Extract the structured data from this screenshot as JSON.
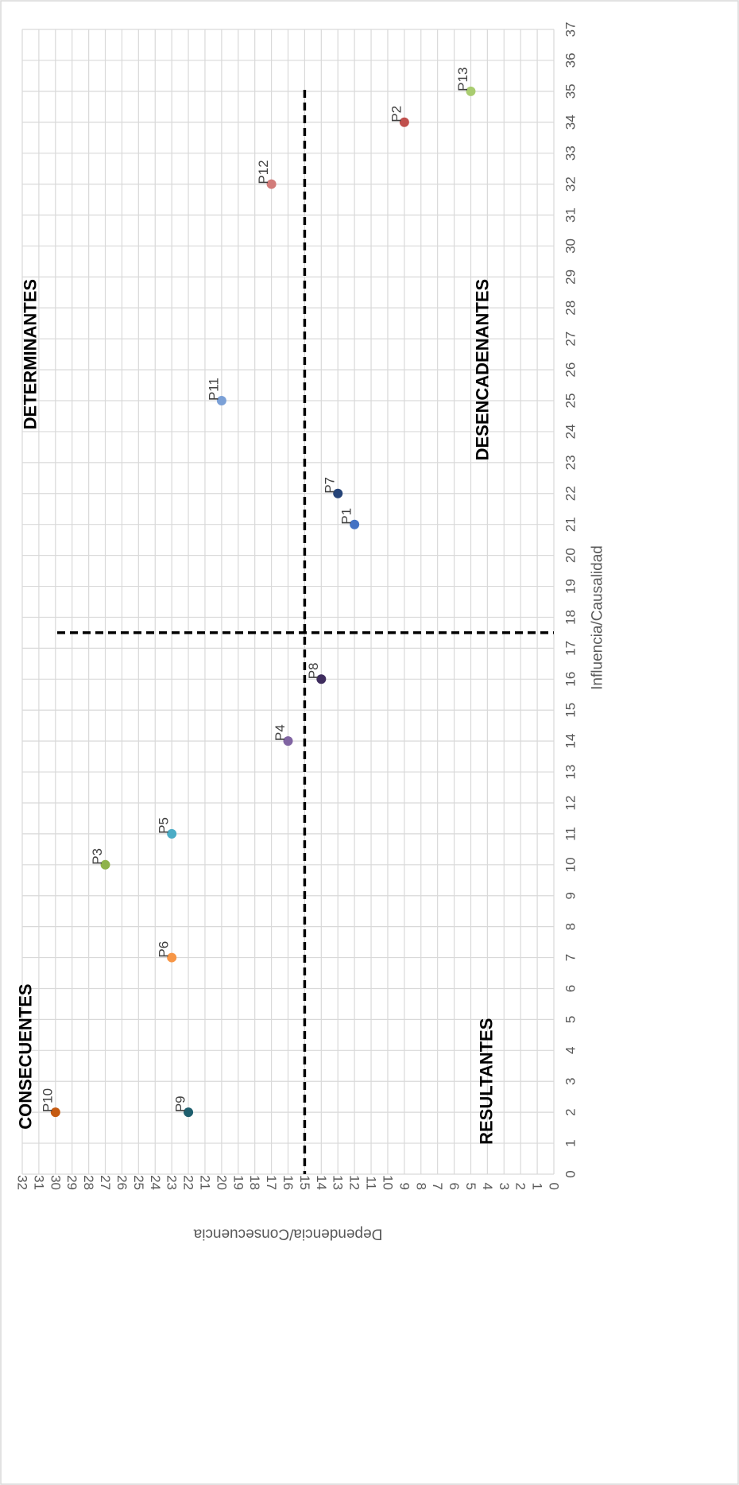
{
  "chart_data": {
    "type": "scatter",
    "xlabel": "Influencia/Causalidad",
    "ylabel": "Dependencia/Consecuencia",
    "xlim": [
      0,
      37
    ],
    "ylim": [
      0,
      32
    ],
    "x_ticks": [
      "0",
      "1",
      "2",
      "3",
      "4",
      "5",
      "6",
      "7",
      "8",
      "9",
      "10",
      "11",
      "12",
      "13",
      "14",
      "15",
      "16",
      "17",
      "18",
      "19",
      "20",
      "21",
      "22",
      "23",
      "24",
      "25",
      "26",
      "27",
      "28",
      "29",
      "30",
      "31",
      "32",
      "33",
      "34",
      "35",
      "36",
      "37"
    ],
    "y_ticks": [
      "0",
      "1",
      "2",
      "3",
      "4",
      "5",
      "6",
      "7",
      "8",
      "9",
      "10",
      "11",
      "12",
      "13",
      "14",
      "15",
      "16",
      "17",
      "18",
      "19",
      "20",
      "21",
      "22",
      "23",
      "24",
      "25",
      "26",
      "27",
      "28",
      "29",
      "30",
      "31",
      "32"
    ],
    "grid": true,
    "orientation": "rotated-90-clockwise",
    "points": [
      {
        "label": "P1",
        "x": 21,
        "y": 12,
        "color": "#4472c4"
      },
      {
        "label": "P2",
        "x": 34,
        "y": 9,
        "color": "#c0504d"
      },
      {
        "label": "P3",
        "x": 10,
        "y": 27,
        "color": "#8fb34a"
      },
      {
        "label": "P4",
        "x": 14,
        "y": 16,
        "color": "#8064a2"
      },
      {
        "label": "P5",
        "x": 11,
        "y": 23,
        "color": "#4bacc6"
      },
      {
        "label": "P6",
        "x": 7,
        "y": 23,
        "color": "#f79646"
      },
      {
        "label": "P7",
        "x": 22,
        "y": 13,
        "color": "#264478"
      },
      {
        "label": "P8",
        "x": 16,
        "y": 14,
        "color": "#3f2d5e"
      },
      {
        "label": "P9",
        "x": 2,
        "y": 22,
        "color": "#1f5f6e"
      },
      {
        "label": "P10",
        "x": 2,
        "y": 30,
        "color": "#c55a11"
      },
      {
        "label": "P11",
        "x": 25,
        "y": 20,
        "color": "#7ba0d6"
      },
      {
        "label": "P12",
        "x": 32,
        "y": 17,
        "color": "#d27c7a"
      },
      {
        "label": "P13",
        "x": 35,
        "y": 5,
        "color": "#a9cc70"
      }
    ],
    "dividers": {
      "x": 17.5,
      "y": 15
    },
    "quadrants": [
      {
        "label": "DETERMINANTES",
        "x": 26.5,
        "y": 32
      },
      {
        "label": "DESENCADENANTES",
        "x": 26,
        "y": 3.5
      },
      {
        "label": "CONSECUENTES",
        "x": 3.8,
        "y": 32
      },
      {
        "label": "RESULTANTES",
        "x": 3,
        "y": 3.5
      }
    ]
  }
}
